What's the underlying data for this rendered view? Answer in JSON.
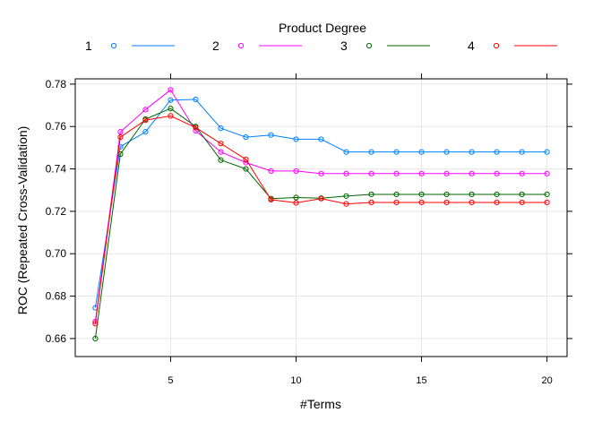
{
  "chart_data": {
    "type": "line",
    "xlabel": "#Terms",
    "ylabel": "ROC (Repeated Cross-Validation)",
    "xlim": [
      1.2,
      20.8
    ],
    "ylim": [
      0.6515,
      0.7825
    ],
    "x_ticks": [
      5,
      10,
      15,
      20
    ],
    "y_ticks": [
      0.66,
      0.68,
      0.7,
      0.72,
      0.74,
      0.76,
      0.78
    ],
    "grid": true,
    "legend": {
      "title": "Product Degree",
      "placement": "top"
    },
    "x": [
      2,
      3,
      4,
      5,
      6,
      7,
      8,
      9,
      10,
      11,
      12,
      13,
      14,
      15,
      16,
      17,
      18,
      19,
      20
    ],
    "series": [
      {
        "name": "1",
        "color": "#0080ff",
        "values": [
          0.6745,
          0.7505,
          0.7575,
          0.7725,
          0.7728,
          0.7592,
          0.755,
          0.756,
          0.754,
          0.754,
          0.748,
          0.748,
          0.748,
          0.748,
          0.748,
          0.748,
          0.748,
          0.748,
          0.748
        ]
      },
      {
        "name": "2",
        "color": "#ff00ff",
        "values": [
          0.668,
          0.7575,
          0.768,
          0.7773,
          0.758,
          0.748,
          0.743,
          0.739,
          0.739,
          0.7378,
          0.7378,
          0.7378,
          0.7378,
          0.7378,
          0.7378,
          0.7378,
          0.7378,
          0.7378,
          0.7378
        ]
      },
      {
        "name": "3",
        "color": "#006400",
        "values": [
          0.66,
          0.747,
          0.7635,
          0.7685,
          0.76,
          0.7442,
          0.74,
          0.726,
          0.7265,
          0.7262,
          0.7272,
          0.728,
          0.728,
          0.728,
          0.728,
          0.728,
          0.728,
          0.728,
          0.728
        ]
      },
      {
        "name": "4",
        "color": "#ff0000",
        "values": [
          0.667,
          0.755,
          0.763,
          0.765,
          0.7595,
          0.752,
          0.7445,
          0.7255,
          0.724,
          0.726,
          0.7235,
          0.7242,
          0.7242,
          0.7242,
          0.7242,
          0.7242,
          0.7242,
          0.7242,
          0.7242
        ]
      }
    ]
  }
}
